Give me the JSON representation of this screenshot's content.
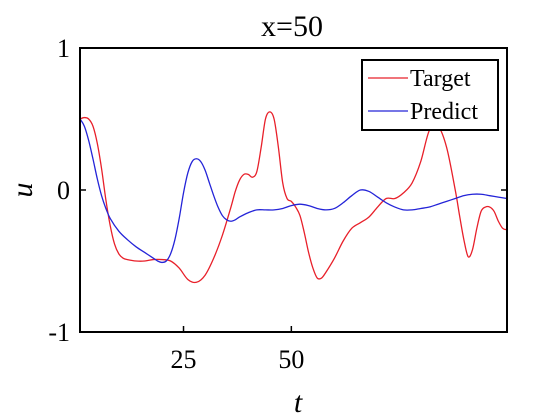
{
  "chart_data": {
    "type": "line",
    "title": "x=50",
    "xlabel": "t",
    "ylabel": "u",
    "xlim": [
      1,
      100
    ],
    "ylim": [
      -1,
      1
    ],
    "xticks": [
      {
        "value": 25,
        "label": "25"
      },
      {
        "value": 50,
        "label": "50"
      }
    ],
    "yticks": [
      {
        "value": -1,
        "label": "-1"
      },
      {
        "value": 0,
        "label": "0"
      },
      {
        "value": 1,
        "label": "1"
      }
    ],
    "grid": false,
    "legend_position": "top-right",
    "series": [
      {
        "name": "Target",
        "color": "#e8202a",
        "x": [
          1,
          2,
          3,
          4,
          5,
          6,
          7,
          8,
          9,
          10,
          11,
          12,
          14,
          16,
          18,
          20,
          22,
          24,
          26,
          28,
          30,
          32,
          34,
          36,
          37,
          38,
          39,
          40,
          41,
          42,
          43,
          44,
          45,
          46,
          47,
          48,
          49,
          50,
          51,
          52,
          53,
          54,
          55,
          56,
          57,
          58,
          60,
          62,
          64,
          66,
          68,
          70,
          72,
          74,
          76,
          78,
          80,
          82,
          84,
          86,
          88,
          89,
          90,
          91,
          92,
          93,
          94,
          95,
          96,
          97,
          98,
          99,
          100
        ],
        "values": [
          0.5,
          0.51,
          0.5,
          0.45,
          0.33,
          0.15,
          -0.07,
          -0.25,
          -0.38,
          -0.45,
          -0.48,
          -0.49,
          -0.5,
          -0.5,
          -0.49,
          -0.49,
          -0.5,
          -0.55,
          -0.63,
          -0.65,
          -0.6,
          -0.48,
          -0.32,
          -0.12,
          -0.01,
          0.07,
          0.11,
          0.11,
          0.09,
          0.13,
          0.3,
          0.5,
          0.55,
          0.5,
          0.3,
          0.05,
          -0.06,
          -0.08,
          -0.12,
          -0.18,
          -0.3,
          -0.44,
          -0.55,
          -0.62,
          -0.62,
          -0.58,
          -0.48,
          -0.36,
          -0.27,
          -0.23,
          -0.19,
          -0.12,
          -0.06,
          -0.06,
          -0.02,
          0.05,
          0.2,
          0.42,
          0.45,
          0.3,
          0.0,
          -0.18,
          -0.35,
          -0.47,
          -0.42,
          -0.27,
          -0.15,
          -0.12,
          -0.12,
          -0.15,
          -0.22,
          -0.27,
          -0.28
        ]
      },
      {
        "name": "Predict",
        "color": "#2424d8",
        "x": [
          1,
          2,
          3,
          4,
          5,
          6,
          7,
          8,
          10,
          12,
          14,
          16,
          18,
          19,
          20,
          21,
          22,
          23,
          24,
          25,
          26,
          27,
          28,
          29,
          30,
          31,
          32,
          33,
          34,
          35,
          36,
          37,
          38,
          40,
          42,
          44,
          46,
          48,
          50,
          52,
          54,
          56,
          58,
          60,
          62,
          64,
          66,
          68,
          70,
          72,
          74,
          76,
          78,
          80,
          82,
          84,
          86,
          88,
          90,
          92,
          94,
          96,
          98,
          100
        ],
        "values": [
          0.5,
          0.45,
          0.35,
          0.22,
          0.08,
          -0.04,
          -0.13,
          -0.2,
          -0.29,
          -0.35,
          -0.4,
          -0.44,
          -0.48,
          -0.5,
          -0.51,
          -0.5,
          -0.45,
          -0.35,
          -0.2,
          -0.02,
          0.12,
          0.2,
          0.22,
          0.2,
          0.14,
          0.05,
          -0.04,
          -0.12,
          -0.18,
          -0.21,
          -0.22,
          -0.21,
          -0.19,
          -0.16,
          -0.14,
          -0.14,
          -0.14,
          -0.13,
          -0.11,
          -0.1,
          -0.11,
          -0.13,
          -0.14,
          -0.13,
          -0.09,
          -0.04,
          0.0,
          -0.01,
          -0.05,
          -0.09,
          -0.12,
          -0.14,
          -0.14,
          -0.13,
          -0.12,
          -0.1,
          -0.08,
          -0.06,
          -0.04,
          -0.03,
          -0.03,
          -0.04,
          -0.05,
          -0.06
        ]
      }
    ]
  }
}
